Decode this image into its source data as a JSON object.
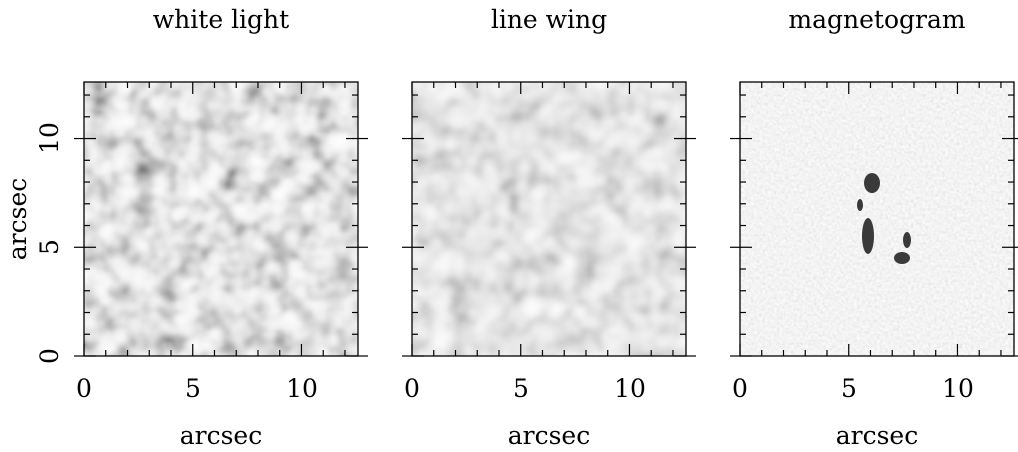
{
  "panels": [
    {
      "title": "white light",
      "xlabel": "arcsec",
      "x_ticks": [
        "0",
        "5",
        "10"
      ],
      "y_ticks": [
        "0",
        "5",
        "10"
      ]
    },
    {
      "title": "line wing",
      "xlabel": "arcsec",
      "x_ticks": [
        "0",
        "5",
        "10"
      ]
    },
    {
      "title": "magnetogram",
      "xlabel": "arcsec",
      "x_ticks": [
        "0",
        "5",
        "10"
      ]
    }
  ],
  "ylabel": "arcsec",
  "axis_range": [
    0,
    12.6
  ]
}
